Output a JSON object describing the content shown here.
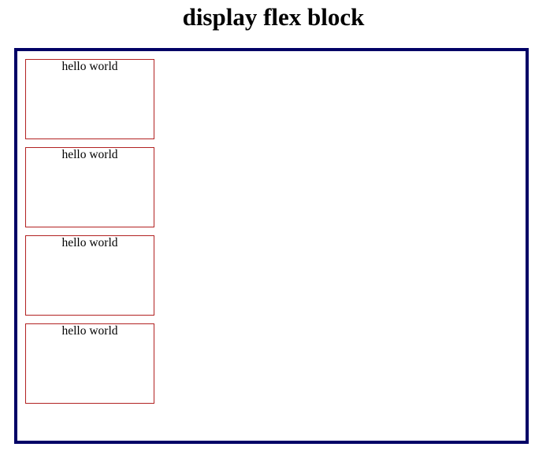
{
  "title": "display flex block",
  "boxes": [
    {
      "text": "hello world"
    },
    {
      "text": "hello world"
    },
    {
      "text": "hello world"
    },
    {
      "text": "hello world"
    }
  ],
  "colors": {
    "container_border": "#000066",
    "box_border": "#b22222",
    "background": "#ffffff",
    "text": "#000000"
  }
}
